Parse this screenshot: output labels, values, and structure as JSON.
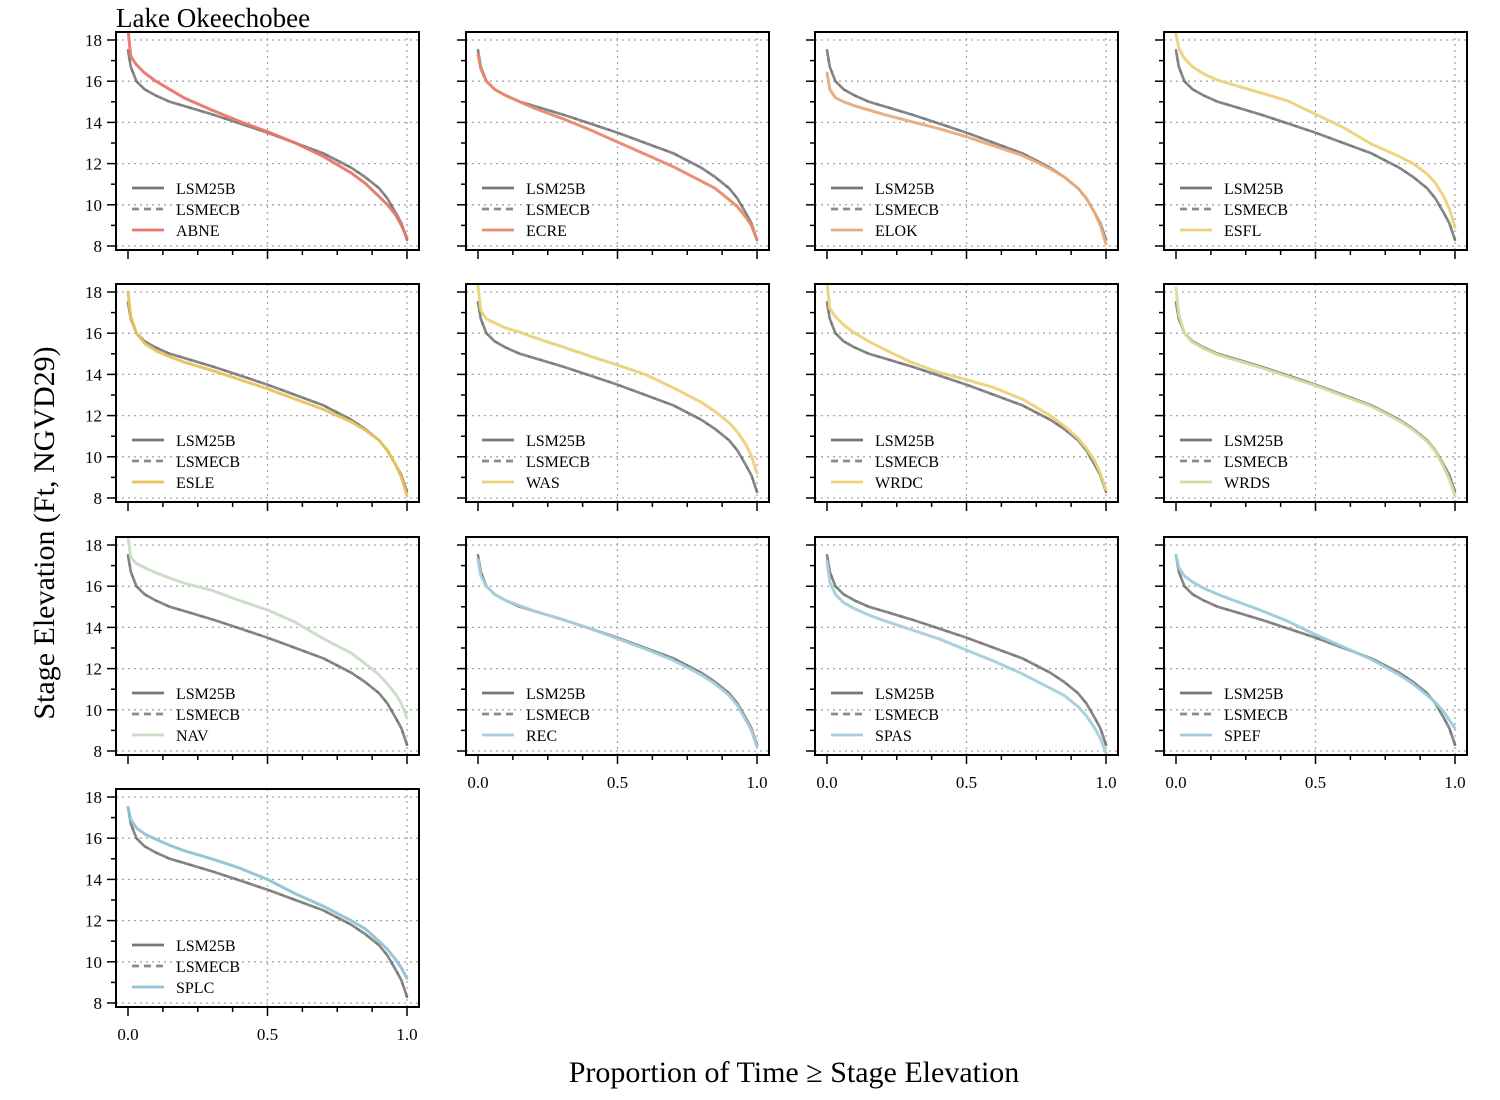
{
  "figure": {
    "title": "Lake Okeechobee",
    "xlabel": "Proportion of Time ≥ Stage Elevation",
    "ylabel": "Stage Elevation (Ft, NGVD29)"
  },
  "chart_data": {
    "type": "line",
    "title": "Lake Okeechobee",
    "xlabel": "Proportion of Time ≥ Stage Elevation",
    "ylabel": "Stage Elevation (Ft, NGVD29)",
    "xlim": [
      0,
      1
    ],
    "ylim": [
      8,
      18
    ],
    "x_ticks": [
      0.0,
      0.5,
      1.0
    ],
    "x_tick_labels": [
      "0.0",
      "0.5",
      "1.0"
    ],
    "y_ticks": [
      8,
      10,
      12,
      14,
      16,
      18
    ],
    "y_tick_labels": [
      "8",
      "10",
      "12",
      "14",
      "16",
      "18"
    ],
    "grid": true,
    "legend_position": "bottom-left",
    "x": [
      0.0,
      0.01,
      0.03,
      0.06,
      0.1,
      0.15,
      0.2,
      0.3,
      0.4,
      0.5,
      0.6,
      0.7,
      0.8,
      0.85,
      0.9,
      0.93,
      0.96,
      0.98,
      1.0
    ],
    "baselines": [
      {
        "name": "LSM25B",
        "color": "#777777",
        "dash": "solid",
        "values": [
          17.5,
          16.7,
          16.0,
          15.6,
          15.3,
          15.0,
          14.8,
          14.4,
          13.95,
          13.5,
          13.0,
          12.5,
          11.8,
          11.35,
          10.8,
          10.3,
          9.6,
          9.1,
          8.3
        ]
      },
      {
        "name": "LSMECB",
        "color": "#8a8a8a",
        "dash": "dashed",
        "values": [
          17.5,
          16.7,
          16.0,
          15.6,
          15.3,
          15.0,
          14.8,
          14.4,
          13.95,
          13.5,
          13.0,
          12.5,
          11.8,
          11.35,
          10.8,
          10.3,
          9.6,
          9.1,
          8.3
        ]
      }
    ],
    "panels": [
      {
        "name": "ABNE",
        "color": "#e8766d",
        "values": [
          18.5,
          17.2,
          16.8,
          16.4,
          16.0,
          15.6,
          15.2,
          14.6,
          14.05,
          13.55,
          13.0,
          12.35,
          11.55,
          11.05,
          10.4,
          10.0,
          9.5,
          9.0,
          8.4
        ]
      },
      {
        "name": "ECRE",
        "color": "#e88a6d",
        "values": [
          17.3,
          16.6,
          16.0,
          15.6,
          15.3,
          15.0,
          14.7,
          14.2,
          13.65,
          13.05,
          12.45,
          11.85,
          11.15,
          10.8,
          10.25,
          9.9,
          9.4,
          9.0,
          8.3
        ]
      },
      {
        "name": "ELOK",
        "color": "#e9ac7c",
        "values": [
          16.4,
          15.6,
          15.2,
          15.0,
          14.8,
          14.6,
          14.4,
          14.05,
          13.7,
          13.3,
          12.85,
          12.4,
          11.75,
          11.35,
          10.8,
          10.3,
          9.6,
          9.0,
          8.1
        ]
      },
      {
        "name": "ESFL",
        "color": "#ecd27a",
        "values": [
          18.3,
          17.6,
          17.1,
          16.7,
          16.35,
          16.05,
          15.85,
          15.45,
          15.05,
          14.4,
          13.75,
          12.95,
          12.35,
          12.0,
          11.5,
          11.05,
          10.4,
          9.8,
          8.9
        ]
      },
      {
        "name": "ESLE",
        "color": "#e8c35c",
        "values": [
          18.0,
          16.8,
          16.0,
          15.5,
          15.15,
          14.85,
          14.6,
          14.2,
          13.75,
          13.3,
          12.8,
          12.3,
          11.7,
          11.3,
          10.8,
          10.3,
          9.6,
          9.0,
          8.1
        ]
      },
      {
        "name": "WAS",
        "color": "#ecd27a",
        "values": [
          18.3,
          17.1,
          16.7,
          16.5,
          16.25,
          16.05,
          15.8,
          15.35,
          14.9,
          14.45,
          14.0,
          13.35,
          12.65,
          12.2,
          11.65,
          11.2,
          10.6,
          10.05,
          9.2
        ]
      },
      {
        "name": "WRDC",
        "color": "#ecd27a",
        "values": [
          18.5,
          17.2,
          16.8,
          16.4,
          16.0,
          15.6,
          15.25,
          14.6,
          14.1,
          13.75,
          13.35,
          12.8,
          12.0,
          11.5,
          10.9,
          10.4,
          9.8,
          9.2,
          8.4
        ]
      },
      {
        "name": "WRDS",
        "color": "#d8dba0",
        "values": [
          18.2,
          16.9,
          16.0,
          15.55,
          15.25,
          14.95,
          14.75,
          14.35,
          13.9,
          13.45,
          12.95,
          12.45,
          11.75,
          11.3,
          10.75,
          10.25,
          9.5,
          8.9,
          8.1
        ]
      },
      {
        "name": "NAV",
        "color": "#c9dcc4",
        "values": [
          18.4,
          17.4,
          17.1,
          16.9,
          16.65,
          16.4,
          16.15,
          15.8,
          15.3,
          14.85,
          14.25,
          13.45,
          12.75,
          12.25,
          11.7,
          11.25,
          10.75,
          10.3,
          9.6
        ]
      },
      {
        "name": "REC",
        "color": "#a7cfdc",
        "values": [
          17.3,
          16.5,
          16.0,
          15.6,
          15.3,
          15.05,
          14.8,
          14.4,
          13.95,
          13.45,
          12.95,
          12.4,
          11.7,
          11.25,
          10.7,
          10.2,
          9.5,
          9.0,
          8.2
        ]
      },
      {
        "name": "SPAS",
        "color": "#a7cfdc",
        "values": [
          17.2,
          16.2,
          15.6,
          15.2,
          14.9,
          14.6,
          14.35,
          13.9,
          13.45,
          12.9,
          12.35,
          11.75,
          11.05,
          10.7,
          10.15,
          9.7,
          9.1,
          8.6,
          7.9
        ]
      },
      {
        "name": "SPEF",
        "color": "#9ccbdc",
        "values": [
          17.5,
          16.9,
          16.5,
          16.2,
          15.9,
          15.6,
          15.35,
          14.85,
          14.3,
          13.65,
          13.05,
          12.45,
          11.7,
          11.25,
          10.7,
          10.35,
          9.9,
          9.5,
          9.1
        ]
      },
      {
        "name": "SPLC",
        "color": "#8fc3d6",
        "values": [
          17.5,
          16.9,
          16.5,
          16.2,
          15.95,
          15.65,
          15.4,
          15.0,
          14.55,
          14.0,
          13.3,
          12.7,
          12.0,
          11.6,
          11.0,
          10.6,
          10.1,
          9.7,
          9.2
        ]
      }
    ]
  }
}
